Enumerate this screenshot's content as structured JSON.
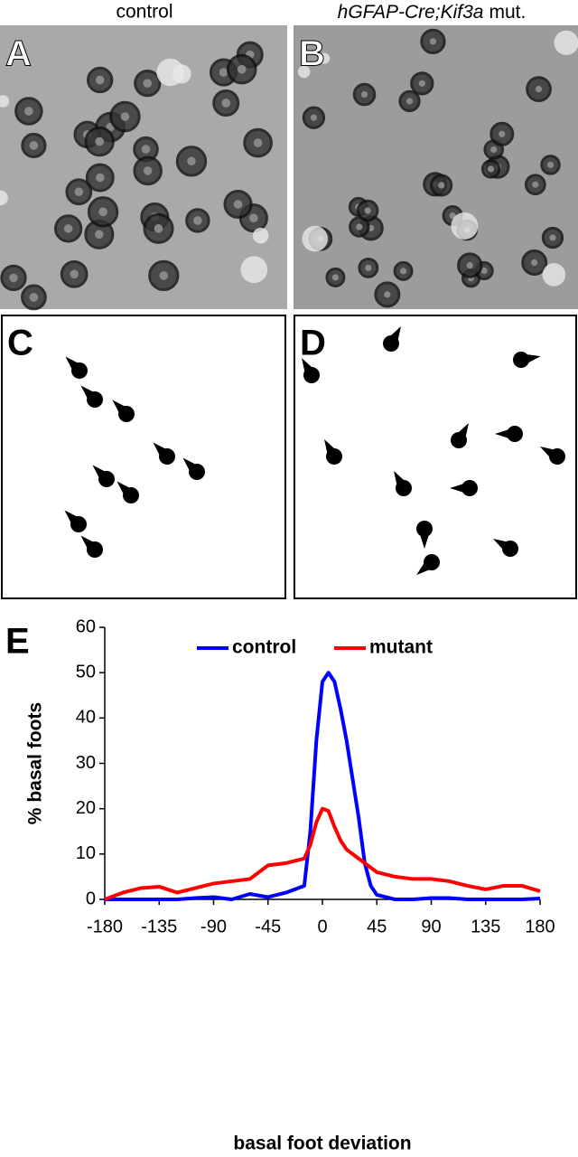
{
  "panels": [
    {
      "label": "A",
      "caption": "control"
    },
    {
      "label": "B",
      "caption_parts": [
        "hGFAP-Cre;Kif3a",
        "mut."
      ]
    },
    {
      "label": "C"
    },
    {
      "label": "D"
    },
    {
      "label": "E"
    }
  ],
  "chart_data": {
    "type": "line",
    "xlabel": "basal foot deviation",
    "ylabel": "% basal foots",
    "x": [
      -180,
      -165,
      -150,
      -135,
      -120,
      -105,
      -90,
      -75,
      -60,
      -45,
      -30,
      -15,
      -10,
      -5,
      0,
      5,
      10,
      15,
      20,
      30,
      35,
      40,
      45,
      60,
      75,
      90,
      105,
      120,
      135,
      150,
      165,
      180
    ],
    "series": [
      {
        "name": "control",
        "color": "#0000ff",
        "values": [
          0,
          0,
          0,
          0,
          0,
          0.3,
          0.5,
          0,
          1.2,
          0.5,
          1.5,
          3,
          15,
          35,
          48,
          50,
          48,
          42,
          35,
          18,
          8,
          3,
          1,
          0,
          0,
          0.3,
          0.3,
          0,
          0,
          0,
          0,
          0.2
        ]
      },
      {
        "name": "mutant",
        "color": "#ff0000",
        "values": [
          0,
          1.5,
          2.5,
          2.8,
          1.5,
          2.5,
          3.5,
          4,
          4.5,
          7.5,
          8,
          9,
          12,
          17,
          20,
          19.5,
          16,
          13,
          11,
          9,
          8,
          7,
          6,
          5,
          4.5,
          4.5,
          4,
          3,
          2.2,
          3,
          3,
          1.8
        ]
      }
    ],
    "xlim": [
      -180,
      180
    ],
    "xticks": [
      -180,
      -135,
      -90,
      -45,
      0,
      45,
      90,
      135,
      180
    ],
    "ylim": [
      0,
      60
    ],
    "yticks": [
      0,
      10,
      20,
      30,
      40,
      50,
      60
    ],
    "legend": "top"
  }
}
